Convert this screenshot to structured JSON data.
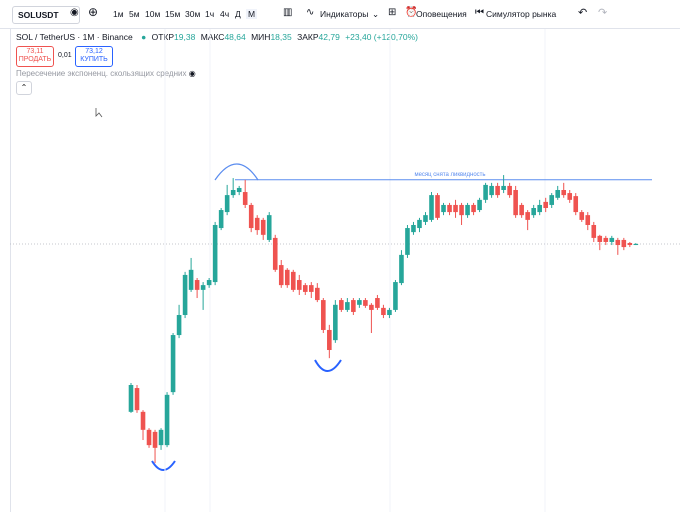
{
  "toolbar": {
    "symbol": "SOLUSDT",
    "intervals": [
      "1м",
      "5м",
      "10м",
      "15м",
      "30м",
      "1ч",
      "4ч",
      "Д",
      "М"
    ],
    "indicators": "Индикаторы",
    "alerts": "Оповещения",
    "replay": "Симулятор рынка"
  },
  "legend": {
    "title": "SOL / TetherUS · 1M · Binance",
    "open_label": "ОТКР",
    "open": "19,38",
    "high_label": "МАКС",
    "high": "48,64",
    "low_label": "МИН",
    "low": "18,35",
    "close_label": "ЗАКР",
    "close": "42,79",
    "change": "+23,40 (+120,70%)"
  },
  "trade": {
    "sell_price": "73,11",
    "sell": "ПРОДАТЬ",
    "spread": "0,01",
    "buy_price": "73,12",
    "buy": "КУПИТЬ"
  },
  "indicator": "Пересечение экспоненц. скользящих средних",
  "chart_data": {
    "type": "candlestick",
    "open": [
      23.6,
      30.6,
      23.6,
      18.3,
      17.7,
      13.8,
      13.8,
      29.4,
      46.2,
      52.1,
      59.5,
      62.4,
      59.5,
      60.9,
      61.8,
      77.7,
      82.4,
      87.4,
      88.3,
      88.3,
      84.5,
      80.7,
      80.1,
      74.2,
      74.8,
      66.8,
      65.4,
      64.8,
      62.4,
      60.9,
      60.9,
      60.1,
      56.5,
      47.7,
      44.7,
      56.5,
      53.6,
      56.5,
      55.1,
      56.5,
      55.1,
      57.1,
      54.2,
      52.1,
      53.6,
      61.5,
      69.8,
      76.5,
      77.7,
      79.5,
      80.1,
      87.4,
      82.4,
      84.5,
      84.5,
      84.5,
      81.5,
      84.5,
      83.0,
      86.0,
      87.4,
      90.1,
      88.9,
      90.1,
      88.9,
      84.5,
      82.4,
      81.5,
      82.4,
      85.4,
      84.5,
      86.6,
      88.9,
      88.0,
      87.1,
      82.4,
      81.5,
      78.6,
      75.4,
      74.8,
      73.6,
      74.2,
      74.2,
      73.3,
      72.7
    ],
    "high": [
      32.1,
      31.5,
      24.1,
      18.8,
      18.3,
      18.8,
      29.4,
      46.8,
      55.1,
      64.8,
      68.9,
      63.0,
      61.8,
      63.0,
      79.5,
      83.6,
      90.4,
      92.4,
      90.1,
      91.9,
      85.1,
      81.5,
      80.7,
      82.4,
      75.7,
      68.3,
      65.9,
      65.4,
      63.9,
      61.5,
      61.8,
      61.5,
      57.1,
      49.2,
      56.5,
      57.1,
      57.1,
      57.1,
      57.1,
      57.1,
      55.6,
      58.0,
      55.1,
      54.2,
      62.4,
      71.2,
      78.6,
      79.5,
      80.7,
      82.4,
      88.3,
      88.0,
      85.1,
      85.1,
      86.0,
      85.1,
      85.1,
      85.1,
      86.6,
      91.0,
      91.0,
      91.0,
      93.3,
      91.0,
      90.1,
      85.1,
      83.0,
      84.5,
      86.0,
      86.6,
      88.0,
      90.1,
      91.0,
      88.9,
      88.0,
      83.0,
      82.4,
      79.5,
      75.7,
      75.4,
      75.4,
      74.8,
      74.8,
      73.6,
      73.3
    ],
    "low": [
      23.3,
      23.3,
      15.3,
      13.0,
      8.5,
      12.4,
      13.2,
      28.6,
      45.3,
      51.2,
      58.9,
      57.1,
      53.6,
      60.1,
      60.9,
      77.1,
      81.5,
      86.6,
      87.4,
      83.6,
      76.5,
      75.7,
      74.2,
      73.6,
      64.8,
      60.1,
      60.1,
      58.9,
      58.0,
      58.0,
      57.1,
      55.9,
      46.8,
      39.4,
      43.9,
      53.0,
      53.0,
      52.1,
      54.2,
      54.2,
      46.8,
      53.6,
      51.2,
      51.2,
      53.0,
      60.9,
      68.9,
      75.7,
      76.5,
      78.6,
      79.5,
      80.1,
      81.5,
      81.5,
      80.7,
      78.6,
      80.7,
      81.5,
      82.4,
      85.1,
      86.6,
      86.6,
      88.0,
      86.6,
      80.7,
      80.7,
      77.1,
      80.7,
      81.5,
      82.4,
      83.6,
      86.0,
      86.6,
      85.1,
      81.5,
      79.5,
      77.1,
      73.6,
      71.2,
      72.7,
      72.7,
      69.8,
      71.2,
      72.1,
      72.7
    ],
    "close": [
      31.5,
      24.1,
      18.3,
      13.8,
      13.0,
      18.3,
      28.6,
      46.2,
      52.1,
      63.9,
      65.4,
      59.5,
      60.9,
      62.4,
      78.6,
      83.0,
      87.4,
      88.9,
      89.5,
      84.5,
      77.7,
      77.1,
      75.7,
      81.5,
      65.4,
      60.9,
      60.9,
      59.5,
      59.5,
      58.9,
      58.9,
      56.5,
      47.7,
      41.8,
      55.1,
      53.6,
      55.9,
      53.0,
      56.5,
      54.8,
      53.6,
      54.2,
      52.1,
      53.6,
      61.8,
      69.8,
      77.7,
      78.6,
      80.1,
      81.5,
      87.4,
      80.7,
      84.5,
      82.4,
      82.4,
      81.5,
      84.5,
      82.4,
      86.0,
      90.4,
      90.1,
      87.4,
      90.1,
      87.4,
      81.5,
      81.5,
      80.1,
      83.6,
      84.5,
      83.6,
      87.4,
      88.9,
      87.4,
      86.0,
      82.4,
      80.1,
      78.6,
      74.8,
      73.6,
      73.6,
      74.8,
      72.7,
      72.1,
      72.7,
      73.0
    ],
    "ylim": [
      0,
      136
    ],
    "up_color": "#26a69a",
    "down_color": "#ef5350",
    "annotation": {
      "text": "месяц снята ликвидность",
      "value": 91.9
    }
  }
}
